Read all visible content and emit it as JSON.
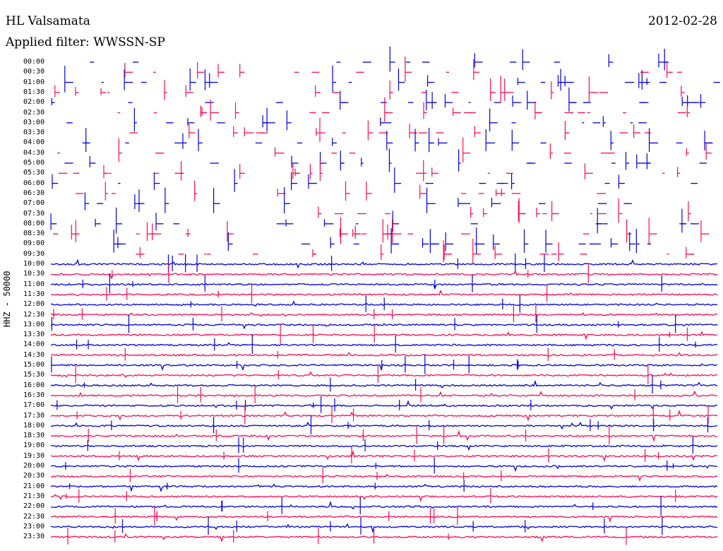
{
  "header": {
    "station": "HL Valsamata",
    "date": "2012-02-28",
    "filter": "Applied filter: WWSSN-SP"
  },
  "channel_label": "HHZ - 50000",
  "colors": {
    "trace_a": "#0000e0",
    "trace_b": "#ff0a50"
  },
  "time_labels": [
    "00:00",
    "00:30",
    "01:00",
    "01:30",
    "02:00",
    "02:30",
    "03:00",
    "03:30",
    "04:00",
    "04:30",
    "05:00",
    "05:30",
    "06:00",
    "06:30",
    "07:00",
    "07:30",
    "08:00",
    "08:30",
    "09:00",
    "09:30",
    "10:00",
    "10:30",
    "11:00",
    "11:30",
    "12:00",
    "12:30",
    "13:00",
    "13:30",
    "14:00",
    "14:30",
    "15:00",
    "15:30",
    "16:00",
    "16:30",
    "17:00",
    "17:30",
    "18:00",
    "18:30",
    "19:00",
    "19:30",
    "20:00",
    "20:30",
    "21:00",
    "21:30",
    "22:00",
    "22:30",
    "23:00",
    "23:30"
  ]
}
